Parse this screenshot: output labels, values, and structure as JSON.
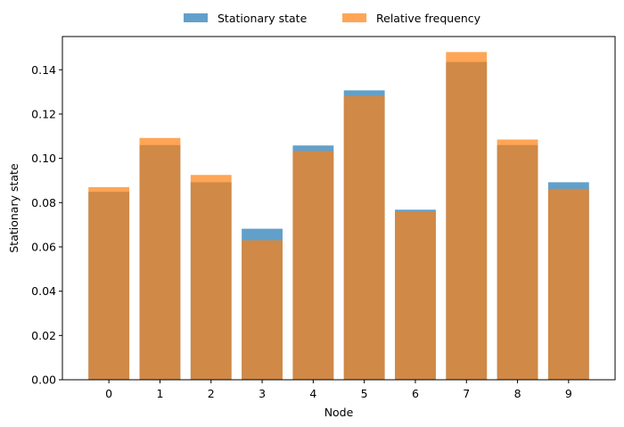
{
  "chart_data": {
    "type": "bar",
    "categories": [
      "0",
      "1",
      "2",
      "3",
      "4",
      "5",
      "6",
      "7",
      "8",
      "9"
    ],
    "series": [
      {
        "name": "Stationary state",
        "color": "#1f77b4",
        "opacity": 0.7,
        "values": [
          0.0849,
          0.106,
          0.0892,
          0.0682,
          0.1058,
          0.1307,
          0.0768,
          0.1435,
          0.106,
          0.0892
        ]
      },
      {
        "name": "Relative frequency",
        "color": "#ff7f0e",
        "opacity": 0.7,
        "values": [
          0.087,
          0.1092,
          0.0925,
          0.063,
          0.1033,
          0.1282,
          0.076,
          0.148,
          0.1085,
          0.0862
        ]
      }
    ],
    "xlabel": "Node",
    "ylabel": "Stationary state",
    "ylim": [
      0,
      0.155
    ],
    "yticks": [
      "0.00",
      "0.02",
      "0.04",
      "0.06",
      "0.08",
      "0.10",
      "0.12",
      "0.14"
    ],
    "legend_position": "top-center, outside plot",
    "grid": false
  }
}
